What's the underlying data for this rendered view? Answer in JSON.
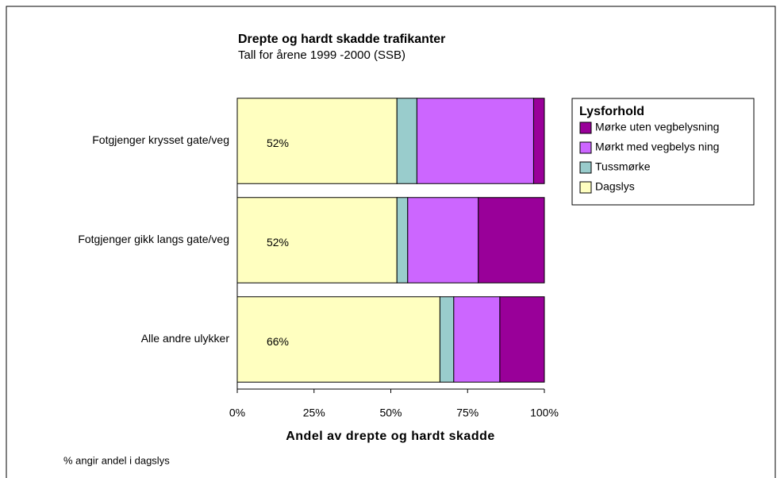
{
  "chart_data": {
    "type": "bar",
    "orientation": "horizontal",
    "stacked": true,
    "title": "Drepte og hardt skadde trafikanter",
    "subtitle": "Tall for årene 1999 -2000 (SSB)",
    "x_label": "Andel av drepte og hardt skadde",
    "note": "% angir andel i dagslys",
    "legend_title": "Lysforhold",
    "legend": "right",
    "categories": [
      "Fotgjenger krysset gate/veg",
      "Fotgjenger gikk langs gate/veg",
      "Alle andre ulykker"
    ],
    "series": [
      {
        "name": "Dagslys",
        "color": "#ffffc0",
        "values": [
          52,
          52,
          66
        ],
        "value_labels": [
          "52%",
          "52%",
          "66%"
        ]
      },
      {
        "name": "Tussmørke",
        "color": "#99cccc",
        "values": [
          6.5,
          3.5,
          4.5
        ]
      },
      {
        "name": "Mørkt med vegbelys ning",
        "color": "#cc66ff",
        "values": [
          38,
          23,
          15
        ]
      },
      {
        "name": "Mørke uten vegbelysning",
        "color": "#990099",
        "values": [
          3.5,
          21.5,
          14.5
        ]
      }
    ],
    "xlim": [
      0,
      100
    ],
    "xticks": [
      {
        "value": 0,
        "label": "0%"
      },
      {
        "value": 25,
        "label": "25%"
      },
      {
        "value": 50,
        "label": "50%"
      },
      {
        "value": 75,
        "label": "75%"
      },
      {
        "value": 100,
        "label": "100%"
      }
    ]
  }
}
